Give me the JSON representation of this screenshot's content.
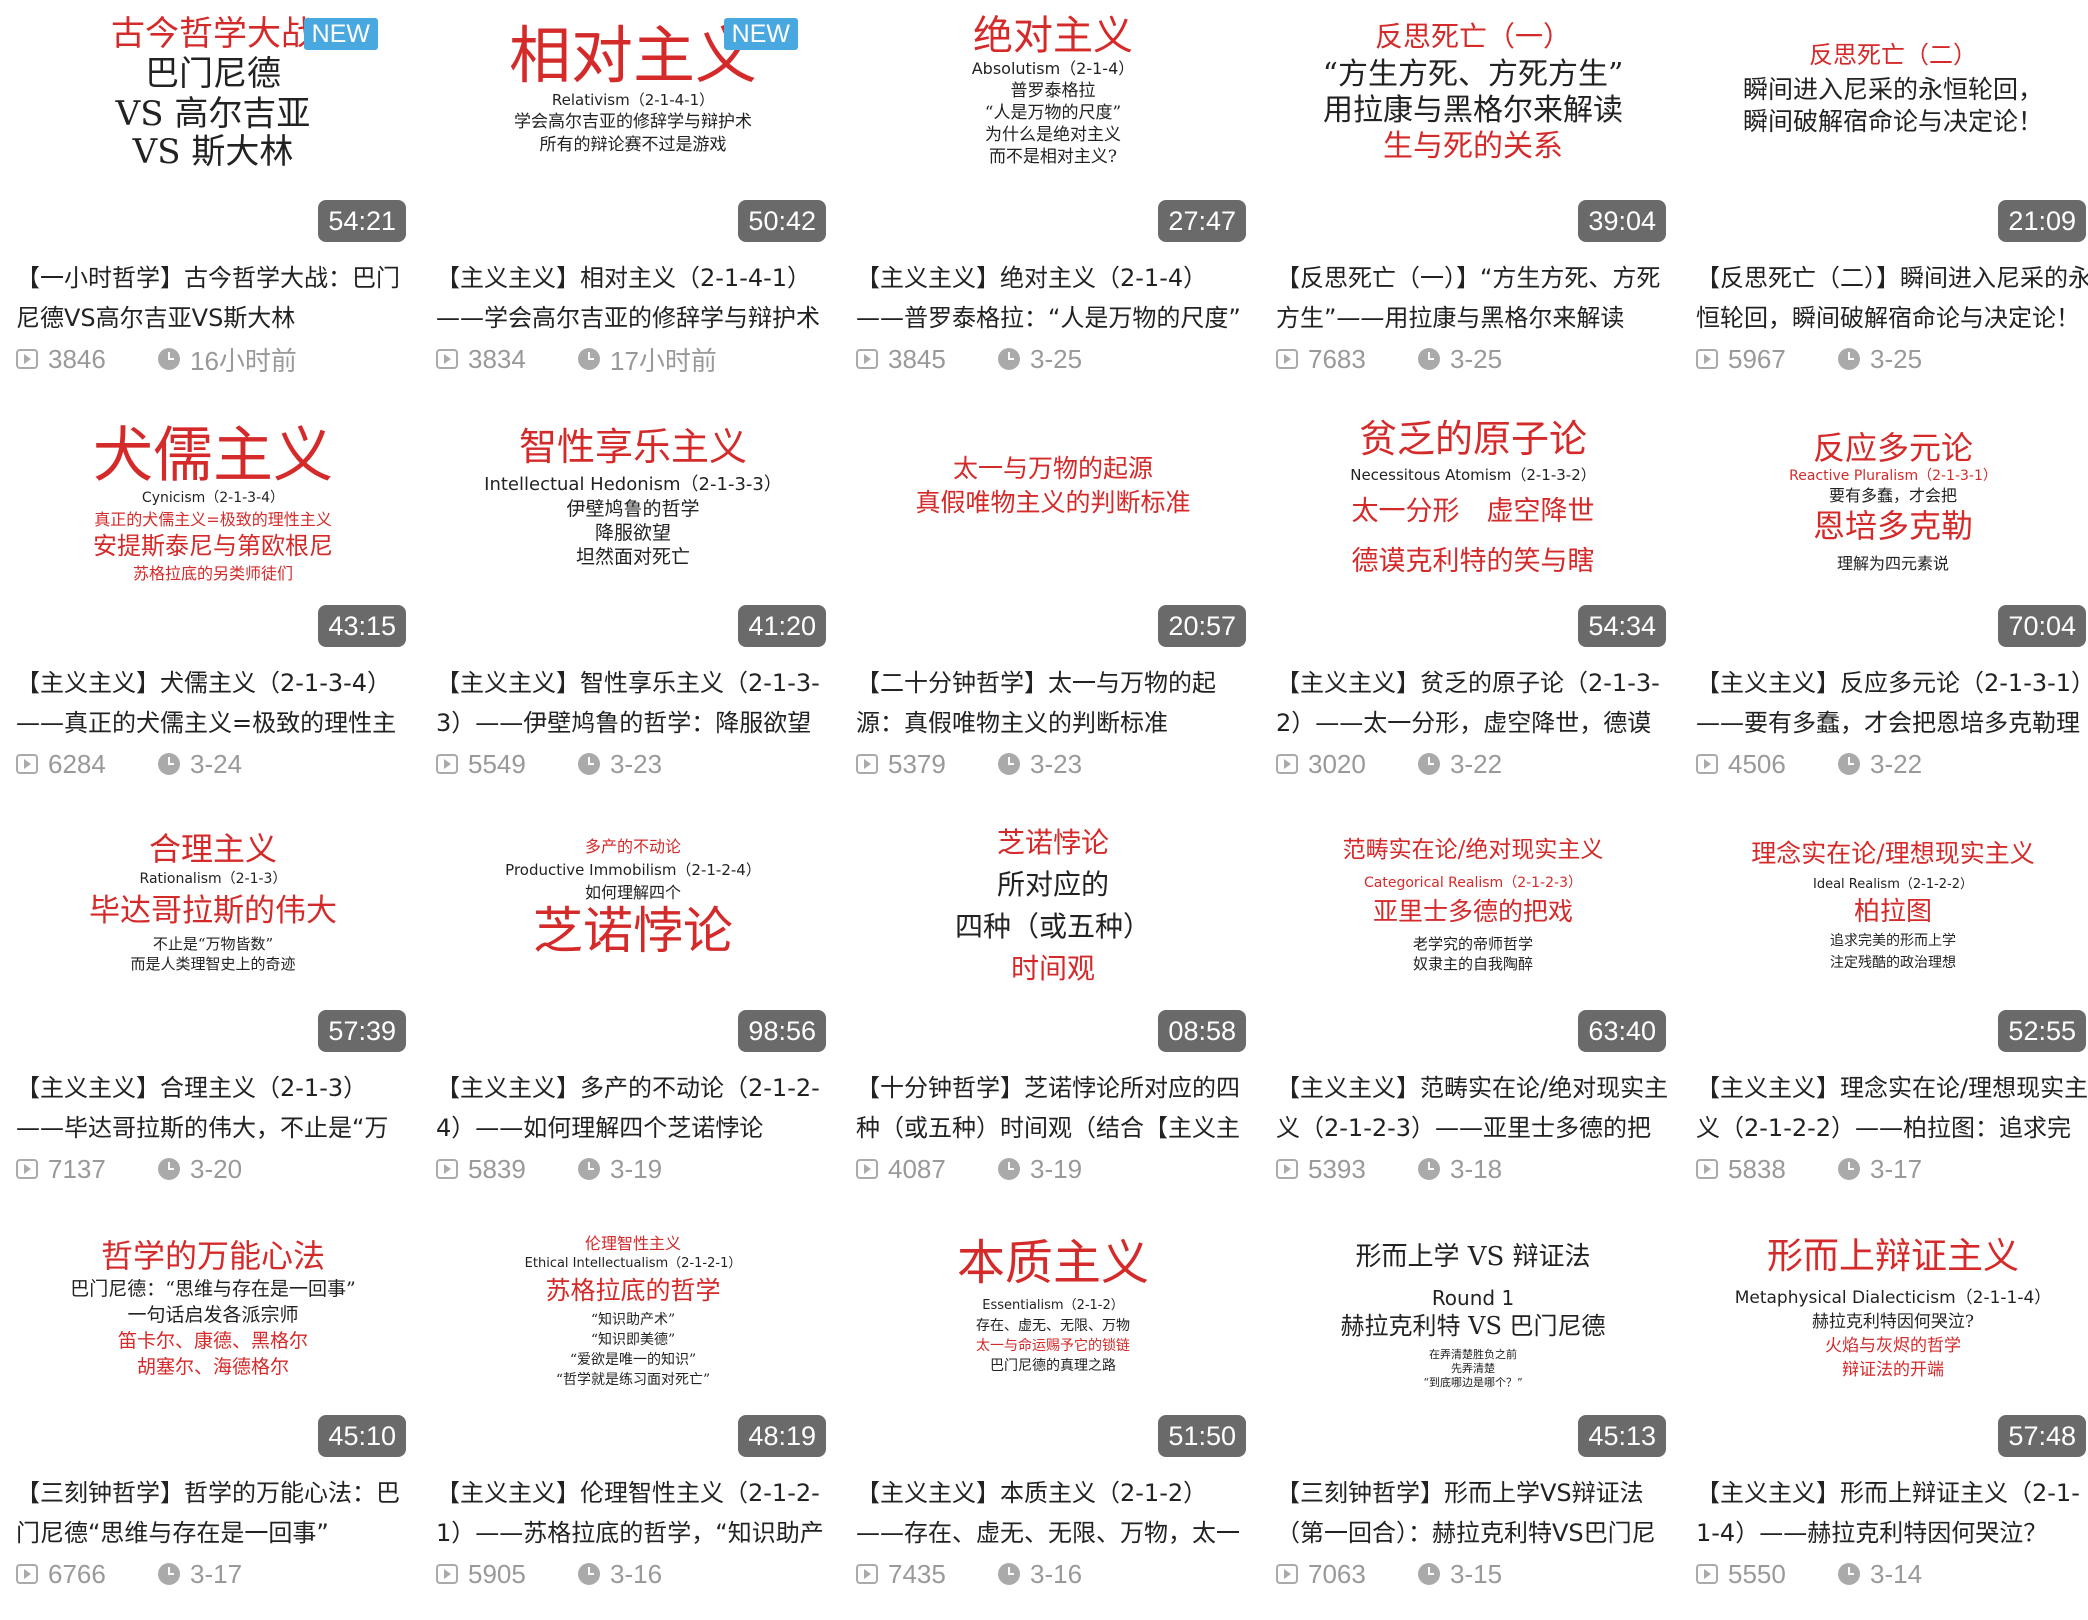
{
  "videos": [
    {
      "new_badge": "NEW",
      "duration": "54:21",
      "title": "【一小时哲学】古今哲学大战：巴门尼德VS高尔吉亚VS斯大林",
      "views": "3846",
      "date": "16小时前",
      "thumb_lines": [
        [
          "古今哲学大战",
          "34px",
          "#d42a2a",
          16,
          "serif"
        ],
        [
          "巴门尼德",
          "34px",
          "#222",
          56,
          "serif"
        ],
        [
          "VS 高尔吉亚",
          "34px",
          "#222",
          96,
          "serif"
        ],
        [
          "VS 斯大林",
          "34px",
          "#222",
          134,
          "serif"
        ]
      ]
    },
    {
      "new_badge": "NEW",
      "duration": "50:42",
      "title": "【主义主义】相对主义（2-1-4-1）——学会高尔吉亚的修辞学与辩护术",
      "views": "3834",
      "date": "17小时前",
      "thumb_lines": [
        [
          "相对主义",
          "62px",
          "#d42a2a",
          22,
          "serif"
        ],
        [
          "Relativism（2-1-4-1）",
          "15px",
          "#222",
          92,
          "sans"
        ],
        [
          "学会高尔吉亚的修辞学与辩护术",
          "17px",
          "#222",
          113,
          "serif"
        ],
        [
          "所有的辩论赛不过是游戏",
          "17px",
          "#222",
          136,
          "serif"
        ]
      ]
    },
    {
      "new_badge": "",
      "duration": "27:47",
      "title": "【主义主义】绝对主义（2-1-4）——普罗泰格拉：“人是万物的尺度”",
      "views": "3845",
      "date": "3-25",
      "thumb_lines": [
        [
          "绝对主义",
          "40px",
          "#d42a2a",
          14,
          "serif"
        ],
        [
          "Absolutism（2-1-4）",
          "16px",
          "#222",
          60,
          "sans"
        ],
        [
          "普罗泰格拉",
          "17px",
          "#222",
          82,
          "serif"
        ],
        [
          "“人是万物的尺度”",
          "17px",
          "#222",
          104,
          "serif"
        ],
        [
          "为什么是绝对主义",
          "17px",
          "#222",
          126,
          "serif"
        ],
        [
          "而不是相对主义?",
          "17px",
          "#222",
          148,
          "serif"
        ]
      ]
    },
    {
      "new_badge": "",
      "duration": "39:04",
      "title": "【反思死亡（一）】“方生方死、方死方生”——用拉康与黑格尔来解读",
      "views": "7683",
      "date": "3-25",
      "thumb_lines": [
        [
          "反思死亡（一）",
          "28px",
          "#d42a2a",
          22,
          "serif"
        ],
        [
          "“方生方死、方死方生”",
          "30px",
          "#222",
          58,
          "serif"
        ],
        [
          "用拉康与黑格尔来解读",
          "30px",
          "#222",
          94,
          "serif"
        ],
        [
          "生与死的关系",
          "30px",
          "#d42a2a",
          130,
          "serif"
        ]
      ]
    },
    {
      "new_badge": "",
      "duration": "21:09",
      "title": "【反思死亡（二）】瞬间进入尼采的永恒轮回，瞬间破解宿命论与决定论！",
      "views": "5967",
      "date": "3-25",
      "thumb_lines": [
        [
          "反思死亡（二）",
          "24px",
          "#d42a2a",
          42,
          "serif"
        ],
        [
          "瞬间进入尼采的永恒轮回，",
          "25px",
          "#222",
          76,
          "serif"
        ],
        [
          "瞬间破解宿命论与决定论！",
          "25px",
          "#222",
          108,
          "serif"
        ]
      ]
    },
    {
      "new_badge": "",
      "duration": "43:15",
      "title": "【主义主义】犬儒主义（2-1-3-4）——真正的犬儒主义=极致的理性主义",
      "views": "6284",
      "date": "3-24",
      "thumb_lines": [
        [
          "犬儒主义",
          "60px",
          "#d42a2a",
          18,
          "serif"
        ],
        [
          "Cynicism（2-1-3-4）",
          "14px",
          "#222",
          86,
          "sans"
        ],
        [
          "真正的犬儒主义=极致的理性主义",
          "16px",
          "#d42a2a",
          106,
          "serif"
        ],
        [
          "安提斯泰尼与第欧根尼",
          "24px",
          "#d42a2a",
          128,
          "serif"
        ],
        [
          "苏格拉底的另类师徒们",
          "16px",
          "#d42a2a",
          160,
          "serif"
        ]
      ]
    },
    {
      "new_badge": "",
      "duration": "41:20",
      "title": "【主义主义】智性享乐主义（2-1-3-3）——伊壁鸠鲁的哲学：降服欲望",
      "views": "5549",
      "date": "3-23",
      "thumb_lines": [
        [
          "智性享乐主义",
          "38px",
          "#d42a2a",
          22,
          "serif"
        ],
        [
          "Intellectual Hedonism（2-1-3-3）",
          "18px",
          "#222",
          70,
          "sans"
        ],
        [
          "伊壁鸠鲁的哲学",
          "19px",
          "#222",
          94,
          "serif"
        ],
        [
          "降服欲望",
          "19px",
          "#222",
          118,
          "serif"
        ],
        [
          "坦然面对死亡",
          "19px",
          "#222",
          142,
          "serif"
        ]
      ]
    },
    {
      "new_badge": "",
      "duration": "20:57",
      "title": "【二十分钟哲学】太一与万物的起源：真假唯物主义的判断标准",
      "views": "5379",
      "date": "3-23",
      "thumb_lines": [
        [
          "太一与万物的起源",
          "25px",
          "#d42a2a",
          50,
          "serif"
        ],
        [
          "真假唯物主义的判断标准",
          "25px",
          "#d42a2a",
          84,
          "serif"
        ]
      ]
    },
    {
      "new_badge": "",
      "duration": "54:34",
      "title": "【主义主义】贫乏的原子论（2-1-3-2）——太一分形，虚空降世，德谟克利特的笑与瞎",
      "views": "3020",
      "date": "3-22",
      "thumb_lines": [
        [
          "贫乏的原子论",
          "38px",
          "#d42a2a",
          14,
          "serif"
        ],
        [
          "Necessitous Atomism（2-1-3-2）",
          "15px",
          "#222",
          62,
          "sans"
        ],
        [
          "太一分形　虚空降世",
          "27px",
          "#d42a2a",
          92,
          "serif"
        ],
        [
          "德谟克利特的笑与瞎",
          "27px",
          "#d42a2a",
          142,
          "serif"
        ]
      ]
    },
    {
      "new_badge": "",
      "duration": "70:04",
      "title": "【主义主义】反应多元论（2-1-3-1）——要有多蠢，才会把恩培多克勒理解为四元素说",
      "views": "4506",
      "date": "3-22",
      "thumb_lines": [
        [
          "反应多元论",
          "32px",
          "#d42a2a",
          26,
          "serif"
        ],
        [
          "Reactive Pluralism（2-1-3-1）",
          "14px",
          "#d42a2a",
          64,
          "sans"
        ],
        [
          "要有多蠢，才会把",
          "16px",
          "#222",
          82,
          "serif"
        ],
        [
          "恩培多克勒",
          "32px",
          "#d42a2a",
          104,
          "serif"
        ],
        [
          "理解为四元素说",
          "16px",
          "#222",
          150,
          "serif"
        ]
      ]
    },
    {
      "new_badge": "",
      "duration": "57:39",
      "title": "【主义主义】合理主义（2-1-3）——毕达哥拉斯的伟大，不止是“万物皆数”",
      "views": "7137",
      "date": "3-20",
      "thumb_lines": [
        [
          "合理主义",
          "32px",
          "#d42a2a",
          22,
          "serif"
        ],
        [
          "Rationalism（2-1-3）",
          "14px",
          "#222",
          62,
          "sans"
        ],
        [
          "毕达哥拉斯的伟大",
          "31px",
          "#d42a2a",
          84,
          "serif"
        ],
        [
          "不止是“万物皆数”",
          "15px",
          "#222",
          126,
          "serif"
        ],
        [
          "而是人类理智史上的奇迹",
          "15px",
          "#222",
          146,
          "serif"
        ]
      ]
    },
    {
      "new_badge": "",
      "duration": "98:56",
      "title": "【主义主义】多产的不动论（2-1-2-4）——如何理解四个芝诺悖论",
      "views": "5839",
      "date": "3-19",
      "thumb_lines": [
        [
          "多产的不动论",
          "16px",
          "#d42a2a",
          28,
          "serif"
        ],
        [
          "Productive Immobilism（2-1-2-4）",
          "15px",
          "#222",
          52,
          "sans"
        ],
        [
          "如何理解四个",
          "16px",
          "#222",
          74,
          "serif"
        ],
        [
          "芝诺悖论",
          "50px",
          "#d42a2a",
          94,
          "serif"
        ]
      ]
    },
    {
      "new_badge": "",
      "duration": "08:58",
      "title": "【十分钟哲学】芝诺悖论所对应的四种（或五种）时间观（结合【主义主义】）",
      "views": "4087",
      "date": "3-19",
      "thumb_lines": [
        [
          "芝诺悖论",
          "28px",
          "#d42a2a",
          18,
          "serif"
        ],
        [
          "所对应的",
          "28px",
          "#222",
          60,
          "serif"
        ],
        [
          "四种（或五种）",
          "28px",
          "#222",
          102,
          "serif"
        ],
        [
          "时间观",
          "28px",
          "#d42a2a",
          144,
          "serif"
        ]
      ]
    },
    {
      "new_badge": "",
      "duration": "63:40",
      "title": "【主义主义】范畴实在论/绝对现实主义（2-1-2-3）——亚里士多德的把戏",
      "views": "5393",
      "date": "3-18",
      "thumb_lines": [
        [
          "范畴实在论/绝对现实主义",
          "23px",
          "#d42a2a",
          28,
          "serif"
        ],
        [
          "Categorical Realism（2-1-2-3）",
          "14px",
          "#d42a2a",
          66,
          "sans"
        ],
        [
          "亚里士多德的把戏",
          "25px",
          "#d42a2a",
          88,
          "serif"
        ],
        [
          "老学究的帝师哲学",
          "15px",
          "#222",
          126,
          "serif"
        ],
        [
          "奴隶主的自我陶醉",
          "15px",
          "#222",
          146,
          "serif"
        ]
      ]
    },
    {
      "new_badge": "",
      "duration": "52:55",
      "title": "【主义主义】理念实在论/理想现实主义（2-1-2-2）——柏拉图：追求完美的形而上学",
      "views": "5838",
      "date": "3-17",
      "thumb_lines": [
        [
          "理念实在论/理想现实主义",
          "25px",
          "#d42a2a",
          30,
          "serif"
        ],
        [
          "Ideal Realism（2-1-2-2）",
          "13px",
          "#222",
          68,
          "sans"
        ],
        [
          "柏拉图",
          "26px",
          "#d42a2a",
          88,
          "serif"
        ],
        [
          "追求完美的形而上学",
          "14px",
          "#222",
          124,
          "serif"
        ],
        [
          "注定残酷的政治理想",
          "14px",
          "#222",
          146,
          "serif"
        ]
      ]
    },
    {
      "new_badge": "",
      "duration": "45:10",
      "title": "【三刻钟哲学】哲学的万能心法：巴门尼德“思维与存在是一回事”",
      "views": "6766",
      "date": "3-17",
      "thumb_lines": [
        [
          "哲学的万能心法",
          "32px",
          "#d42a2a",
          24,
          "serif"
        ],
        [
          "巴门尼德：“思维与存在是一回事”",
          "19px",
          "#222",
          64,
          "serif"
        ],
        [
          "一句话启发各派宗师",
          "19px",
          "#222",
          90,
          "serif"
        ],
        [
          "笛卡尔、康德、黑格尔",
          "19px",
          "#d42a2a",
          116,
          "serif"
        ],
        [
          "胡塞尔、海德格尔",
          "19px",
          "#d42a2a",
          142,
          "serif"
        ]
      ]
    },
    {
      "new_badge": "",
      "duration": "48:19",
      "title": "【主义主义】伦理智性主义（2-1-2-1）——苏格拉底的哲学，“知识助产术”",
      "views": "5905",
      "date": "3-16",
      "thumb_lines": [
        [
          "伦理智性主义",
          "16px",
          "#d42a2a",
          20,
          "serif"
        ],
        [
          "Ethical Intellectualism（2-1-2-1）",
          "13px",
          "#222",
          42,
          "sans"
        ],
        [
          "苏格拉底的哲学",
          "25px",
          "#d42a2a",
          62,
          "serif"
        ],
        [
          "“知识助产术”",
          "14px",
          "#222",
          98,
          "serif"
        ],
        [
          "“知识即美德”",
          "14px",
          "#222",
          118,
          "serif"
        ],
        [
          "“爱欲是唯一的知识”",
          "14px",
          "#222",
          138,
          "serif"
        ],
        [
          "“哲学就是练习面对死亡”",
          "14px",
          "#222",
          158,
          "serif"
        ]
      ]
    },
    {
      "new_badge": "",
      "duration": "51:50",
      "title": "【主义主义】本质主义（2-1-2）——存在、虚无、无限、万物，太一与命运赐予它的锁链",
      "views": "7435",
      "date": "3-16",
      "thumb_lines": [
        [
          "本质主义",
          "48px",
          "#d42a2a",
          22,
          "serif"
        ],
        [
          "Essentialism（2-1-2）",
          "13px",
          "#222",
          84,
          "sans"
        ],
        [
          "存在、虚无、无限、万物",
          "14px",
          "#222",
          104,
          "serif"
        ],
        [
          "太一与命运赐予它的锁链",
          "14px",
          "#d42a2a",
          124,
          "serif"
        ],
        [
          "巴门尼德的真理之路",
          "14px",
          "#222",
          144,
          "serif"
        ]
      ]
    },
    {
      "new_badge": "",
      "duration": "45:13",
      "title": "【三刻钟哲学】形而上学VS辩证法（第一回合）：赫拉克利特VS巴门尼德",
      "views": "7063",
      "date": "3-15",
      "thumb_lines": [
        [
          "形而上学 VS 辩证法",
          "26px",
          "#222",
          28,
          "serif"
        ],
        [
          "Round 1",
          "20px",
          "#222",
          72,
          "sans"
        ],
        [
          "赫拉克利特 VS 巴门尼德",
          "24px",
          "#222",
          98,
          "serif"
        ],
        [
          "在弄清楚胜负之前",
          "11px",
          "#222",
          134,
          "serif"
        ],
        [
          "先弄清楚",
          "11px",
          "#222",
          148,
          "serif"
        ],
        [
          "“到底哪边是哪个？”",
          "11px",
          "#222",
          162,
          "serif"
        ]
      ]
    },
    {
      "new_badge": "",
      "duration": "57:48",
      "title": "【主义主义】形而上辩证主义（2-1-1-4）——赫拉克利特因何哭泣？",
      "views": "5550",
      "date": "3-14",
      "thumb_lines": [
        [
          "形而上辩证主义",
          "36px",
          "#d42a2a",
          22,
          "serif"
        ],
        [
          "Metaphysical Dialecticism（2-1-1-4）",
          "17px",
          "#222",
          74,
          "sans"
        ],
        [
          "赫拉克利特因何哭泣?",
          "17px",
          "#222",
          98,
          "serif"
        ],
        [
          "火焰与灰烬的哲学",
          "17px",
          "#d42a2a",
          122,
          "serif"
        ],
        [
          "辩证法的开端",
          "17px",
          "#d42a2a",
          146,
          "serif"
        ]
      ]
    }
  ]
}
